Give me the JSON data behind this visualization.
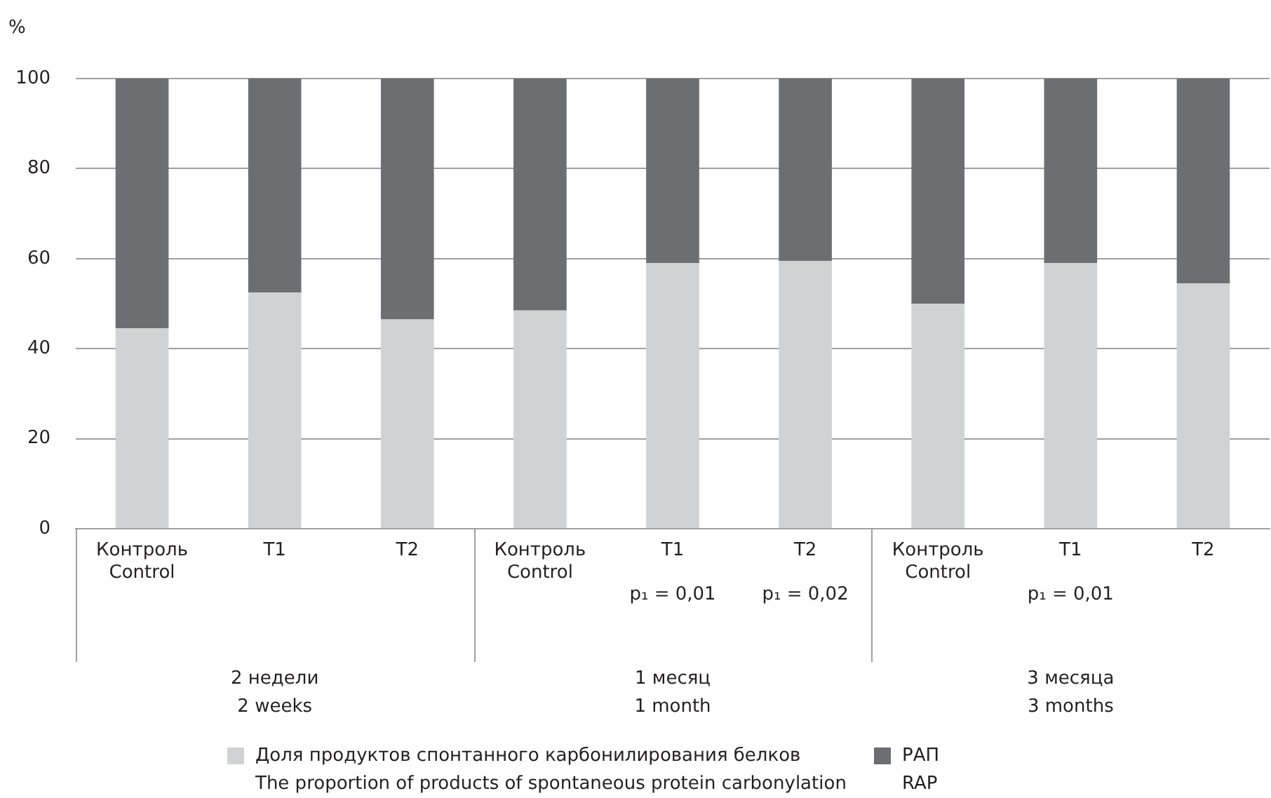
{
  "chart_data": {
    "type": "bar",
    "stacked": true,
    "ylabel": "%",
    "categories": [
      "Контроль\nControl",
      "T1",
      "T2",
      "Контроль\nControl",
      "T1\n\np₁ = 0,01",
      "T2\n\np₁ = 0,02",
      "Контроль\nControl",
      "T1\n\np₁ = 0,01",
      "T2"
    ],
    "series": [
      {
        "name": "Доля продуктов спонтанного карбонилирования белков\nThe proportion of products of spontaneous protein carbonylation",
        "color": "#d1d2d4",
        "values": [
          44.5,
          52.5,
          46.5,
          48.5,
          59,
          59.5,
          50,
          59,
          54.5
        ]
      },
      {
        "name": "РАП\nRAP",
        "color": "#6d6e71",
        "values": [
          55.5,
          47.5,
          53.5,
          51.5,
          41,
          40.5,
          50,
          41,
          45.5
        ]
      }
    ],
    "ylim": [
      0,
      100
    ],
    "yticks": [
      0,
      20,
      40,
      60,
      80,
      100
    ],
    "grid": "y",
    "legend": "bottom",
    "annotations": [
      "2 недели\n2 weeks",
      "1 месяц\n1 month",
      "3 месяца\n3 months"
    ]
  }
}
